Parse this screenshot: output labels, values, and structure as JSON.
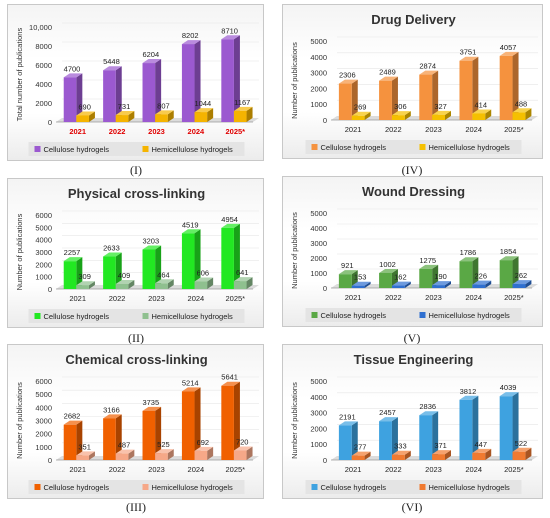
{
  "chart_data": [
    {
      "type": "bar",
      "title": "",
      "numeral": "(I)",
      "ylabel": "Total number of publications",
      "ylim": [
        0,
        10000
      ],
      "yticks": [
        "0",
        "2000",
        "4000",
        "6000",
        "8000",
        "10,000"
      ],
      "categories": [
        "2021",
        "2022",
        "2023",
        "2024",
        "2025*"
      ],
      "category_color": "#e00000",
      "series": [
        {
          "name": "Cellulose hydrogels",
          "values": [
            4700,
            5448,
            6204,
            8202,
            8710
          ],
          "labels": [
            "4700",
            "5448",
            "6204",
            "8202",
            "8710"
          ],
          "color": "#9b59d0"
        },
        {
          "name": "Hemicellulose hydrogels",
          "values": [
            690,
            731,
            807,
            1044,
            1167
          ],
          "labels": [
            "690",
            "731",
            "807",
            "1044",
            "1167"
          ],
          "color": "#f5b400"
        }
      ]
    },
    {
      "type": "bar",
      "title": "Drug Delivery",
      "numeral": "(IV)",
      "ylabel": "Number of publications",
      "ylim": [
        0,
        5000
      ],
      "yticks": [
        "0",
        "1000",
        "2000",
        "3000",
        "4000",
        "5000"
      ],
      "categories": [
        "2021",
        "2022",
        "2023",
        "2024",
        "2025*"
      ],
      "category_color": "#222222",
      "series": [
        {
          "name": "Cellulose hydrogels",
          "values": [
            2306,
            2489,
            2874,
            3751,
            4057
          ],
          "labels": [
            "2306",
            "2489",
            "2874",
            "3751",
            "4057"
          ],
          "color": "#f5923e"
        },
        {
          "name": "Hemicellulose hydrogels",
          "values": [
            269,
            306,
            327,
            414,
            488
          ],
          "labels": [
            "269",
            "306",
            "327",
            "414",
            "488"
          ],
          "color": "#f5c000"
        }
      ]
    },
    {
      "type": "bar",
      "title": "Physical cross-linking",
      "numeral": "(II)",
      "ylabel": "Number of publications",
      "ylim": [
        0,
        6000
      ],
      "yticks": [
        "0",
        "1000",
        "2000",
        "3000",
        "4000",
        "5000",
        "6000"
      ],
      "categories": [
        "2021",
        "2022",
        "2023",
        "2024",
        "2025*"
      ],
      "category_color": "#222222",
      "series": [
        {
          "name": "Cellulose hydrogels",
          "values": [
            2257,
            2633,
            3203,
            4519,
            4954
          ],
          "labels": [
            "2257",
            "2633",
            "3203",
            "4519",
            "4954"
          ],
          "color": "#22e822"
        },
        {
          "name": "Hemicellulose hydrogels",
          "values": [
            309,
            409,
            464,
            606,
            641
          ],
          "labels": [
            "309",
            "409",
            "464",
            "606",
            "641"
          ],
          "color": "#8fc08f"
        }
      ]
    },
    {
      "type": "bar",
      "title": "Wound Dressing",
      "numeral": "(V)",
      "ylabel": "Number of publications",
      "ylim": [
        0,
        5000
      ],
      "yticks": [
        "0",
        "1000",
        "2000",
        "3000",
        "4000",
        "5000"
      ],
      "categories": [
        "2021",
        "2022",
        "2023",
        "2024",
        "2025*"
      ],
      "category_color": "#222222",
      "series": [
        {
          "name": "Cellulose hydrogels",
          "values": [
            921,
            1002,
            1275,
            1786,
            1854
          ],
          "labels": [
            "921",
            "1002",
            "1275",
            "1786",
            "1854"
          ],
          "color": "#5aa845"
        },
        {
          "name": "Hemicellulose hydrogels",
          "values": [
            153,
            162,
            190,
            226,
            262
          ],
          "labels": [
            "153",
            "162",
            "190",
            "226",
            "262"
          ],
          "color": "#2f6fd0"
        }
      ]
    },
    {
      "type": "bar",
      "title": "Chemical cross-linking",
      "numeral": "(III)",
      "ylabel": "Number of publications",
      "ylim": [
        0,
        6000
      ],
      "yticks": [
        "0",
        "1000",
        "2000",
        "3000",
        "4000",
        "5000",
        "6000"
      ],
      "categories": [
        "2021",
        "2022",
        "2023",
        "2024",
        "2025*"
      ],
      "category_color": "#222222",
      "series": [
        {
          "name": "Cellulose hydrogels",
          "values": [
            2682,
            3166,
            3735,
            5214,
            5641
          ],
          "labels": [
            "2682",
            "3166",
            "3735",
            "5214",
            "5641"
          ],
          "color": "#f06000"
        },
        {
          "name": "Hemicellulose hydrogels",
          "values": [
            351,
            487,
            525,
            692,
            720
          ],
          "labels": [
            "351",
            "487",
            "525",
            "692",
            "720"
          ],
          "color": "#f6a888"
        }
      ]
    },
    {
      "type": "bar",
      "title": "Tissue Engineering",
      "numeral": "(VI)",
      "ylabel": "Number of publications",
      "ylim": [
        0,
        5000
      ],
      "yticks": [
        "0",
        "1000",
        "2000",
        "3000",
        "4000",
        "5000"
      ],
      "categories": [
        "2021",
        "2022",
        "2023",
        "2024",
        "2025*"
      ],
      "category_color": "#222222",
      "series": [
        {
          "name": "Cellulose hydrogels",
          "values": [
            2191,
            2457,
            2836,
            3812,
            4039
          ],
          "labels": [
            "2191",
            "2457",
            "2836",
            "3812",
            "4039"
          ],
          "color": "#3ea2e0"
        },
        {
          "name": "Hemicellulose hydrogels",
          "values": [
            277,
            333,
            371,
            447,
            522
          ],
          "labels": [
            "277",
            "333",
            "371",
            "447",
            "522"
          ],
          "color": "#f07a30"
        }
      ]
    }
  ]
}
